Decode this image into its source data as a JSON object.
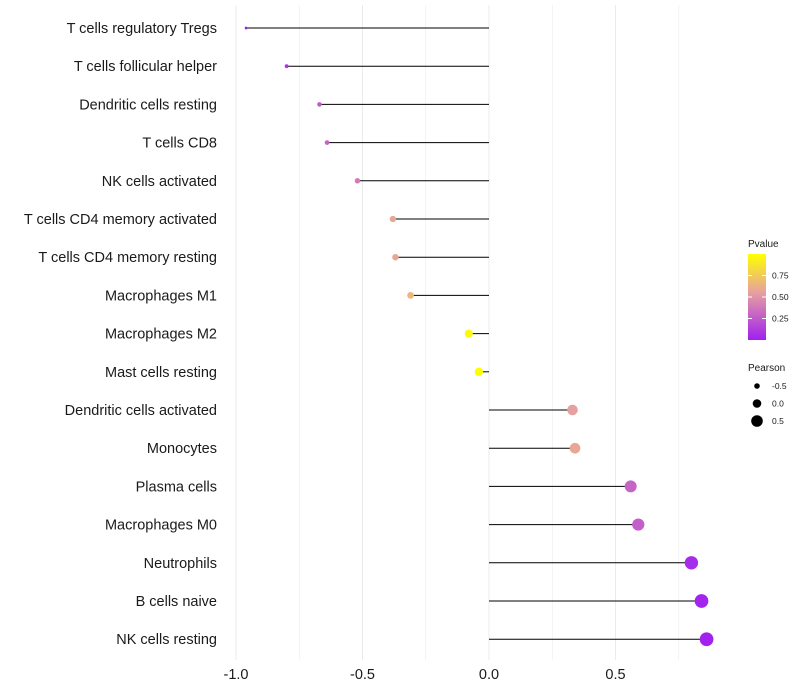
{
  "chart_data": {
    "type": "lollipop",
    "title": "",
    "xlabel": "",
    "ylabel": "",
    "xlim": [
      -1.0,
      0.9
    ],
    "x_ticks": [
      -1.0,
      -0.5,
      0.0,
      0.5
    ],
    "x_tick_labels": [
      "-1.0",
      "-0.5",
      "0.0",
      "0.5"
    ],
    "grid": "vertical",
    "categories": [
      "T cells regulatory  Tregs",
      "T cells follicular helper",
      "Dendritic cells resting",
      "T cells CD8",
      "NK cells activated",
      "T cells CD4 memory activated",
      "T cells CD4 memory resting",
      "Macrophages M1",
      "Macrophages M2",
      "Mast cells resting",
      "Dendritic cells activated",
      "Monocytes",
      "Plasma cells",
      "Macrophages M0",
      "Neutrophils",
      "B cells naive",
      "NK cells resting"
    ],
    "pearson": [
      -0.96,
      -0.8,
      -0.67,
      -0.64,
      -0.52,
      -0.38,
      -0.37,
      -0.31,
      -0.08,
      -0.04,
      0.33,
      0.34,
      0.56,
      0.59,
      0.8,
      0.84,
      0.86
    ],
    "pvalue": [
      0.01,
      0.09,
      0.25,
      0.3,
      0.4,
      0.58,
      0.58,
      0.66,
      0.97,
      0.99,
      0.55,
      0.58,
      0.3,
      0.27,
      0.05,
      0.02,
      0.01
    ],
    "legends": {
      "color": {
        "title": "Pvalue",
        "ticks": [
          0.25,
          0.5,
          0.75
        ],
        "tick_labels": [
          "0.25",
          "0.50",
          "0.75"
        ],
        "range": [
          0.0,
          1.0
        ],
        "gradient": [
          "#a020f0",
          "#e6a0a0",
          "#ffff00"
        ]
      },
      "size": {
        "title": "Pearson",
        "values": [
          -0.5,
          0.0,
          0.5
        ],
        "labels": [
          "-0.5",
          "0.0",
          "0.5"
        ]
      },
      "position": "right"
    }
  }
}
